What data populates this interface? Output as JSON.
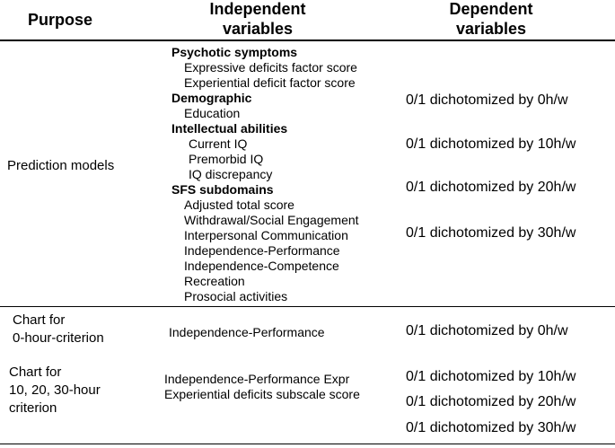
{
  "header": {
    "purpose": [
      "Purpose"
    ],
    "independent": [
      "Independent",
      "variables"
    ],
    "dependent": [
      "Dependent",
      "variables"
    ]
  },
  "rows": [
    {
      "purpose": [
        "Prediction models"
      ],
      "independent": [
        {
          "heading": "Psychotic symptoms",
          "items": [
            "Expressive deficits factor score",
            "Experiential deficit factor score"
          ]
        },
        {
          "heading": "Demographic",
          "items": [
            "Education"
          ]
        },
        {
          "heading": "Intellectual abilities",
          "items": [
            "Current IQ",
            "Premorbid IQ",
            "IQ discrepancy"
          ]
        },
        {
          "heading": "SFS subdomains",
          "items": [
            "Adjusted total score",
            "Withdrawal/Social Engagement",
            "Interpersonal Communication",
            "Independence-Performance",
            "Independence-Competence",
            "Recreation",
            "Prosocial activities"
          ]
        }
      ],
      "dependent": [
        "0/1 dichotomized by 0h/w",
        "0/1 dichotomized by 10h/w",
        "0/1 dichotomized by 20h/w",
        "0/1 dichotomized by 30h/w"
      ]
    },
    {
      "purpose": [
        "Chart for",
        "0-hour-criterion"
      ],
      "independent": [
        {
          "items": [
            "Independence-Performance"
          ]
        }
      ],
      "dependent": [
        "0/1 dichotomized by 0h/w"
      ]
    },
    {
      "purpose": [
        "Chart for",
        "10, 20, 30-hour",
        "criterion"
      ],
      "independent": [
        {
          "items": [
            "Independence-Performance Expr",
            "Experiential deficits subscale score"
          ]
        }
      ],
      "dependent": [
        "0/1 dichotomized by 10h/w",
        "0/1 dichotomized by 20h/w",
        "0/1 dichotomized by 30h/w"
      ]
    }
  ]
}
